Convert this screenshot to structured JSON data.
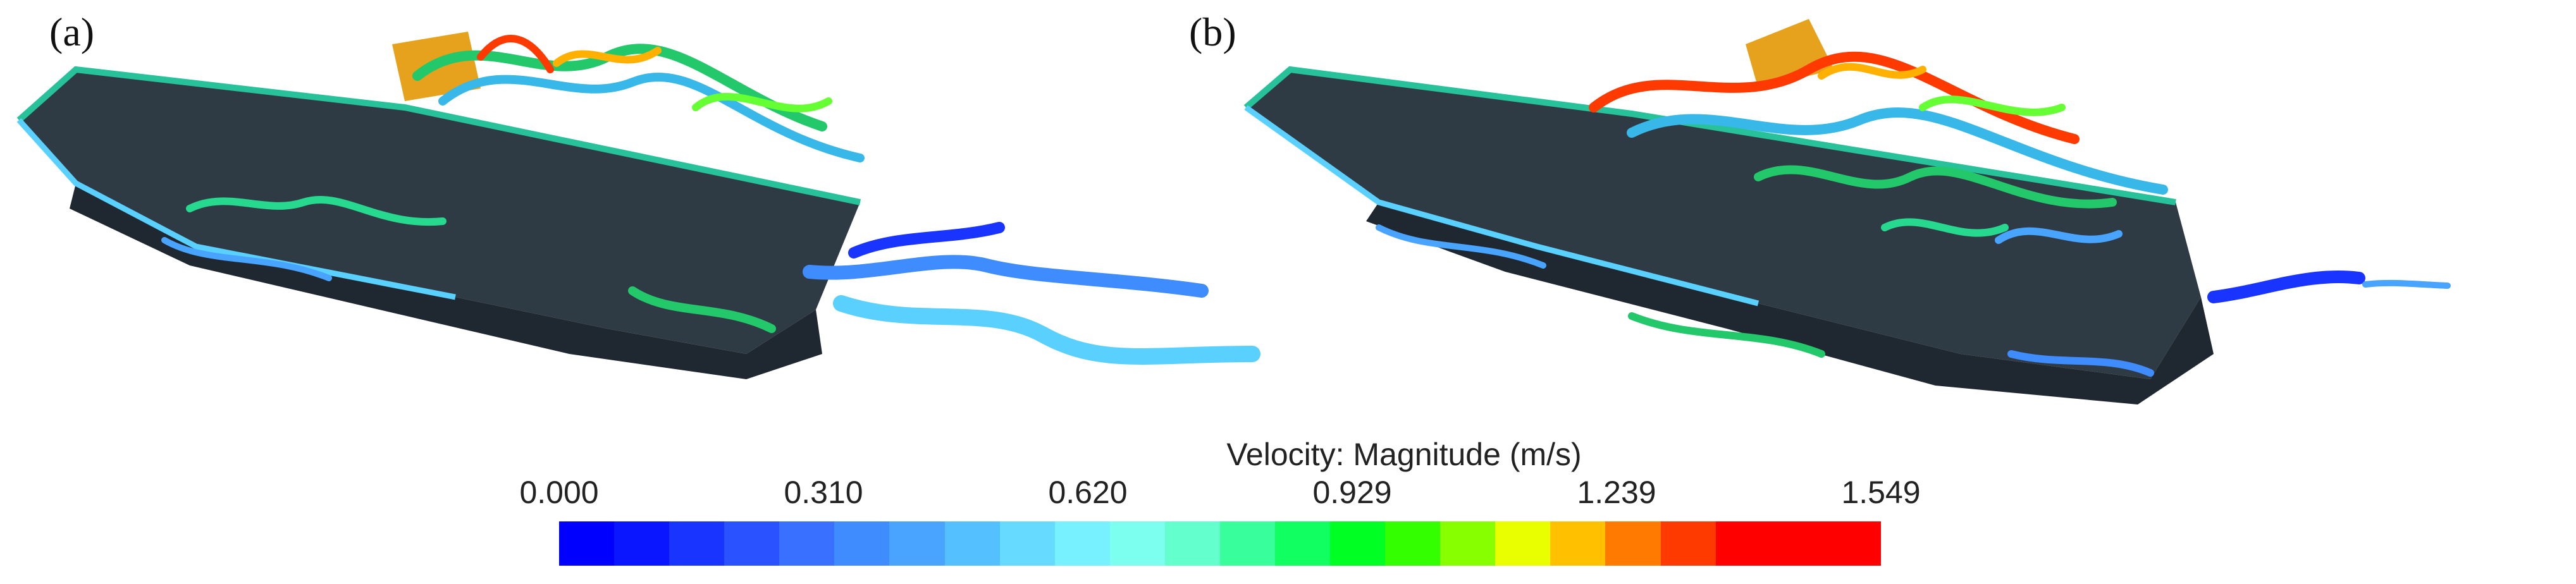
{
  "panels": [
    {
      "label": "(a)"
    },
    {
      "label": "(b)"
    }
  ],
  "legend": {
    "title": "Velocity: Magnitude (m/s)",
    "ticks": [
      "0.000",
      "0.310",
      "0.620",
      "0.929",
      "1.239",
      "1.549"
    ],
    "colors": [
      "#0000ff",
      "#0a16ff",
      "#1a34ff",
      "#2a52ff",
      "#3a70ff",
      "#3f8cff",
      "#48a4ff",
      "#55c0ff",
      "#66dbff",
      "#77f0ff",
      "#7dfff0",
      "#63ffcc",
      "#38ff9c",
      "#12ff62",
      "#00ff22",
      "#33ff00",
      "#88ff00",
      "#e9ff00",
      "#ffc000",
      "#ff7a00",
      "#ff3a00",
      "#ff0000",
      "#ff0000",
      "#ff0000"
    ]
  }
}
